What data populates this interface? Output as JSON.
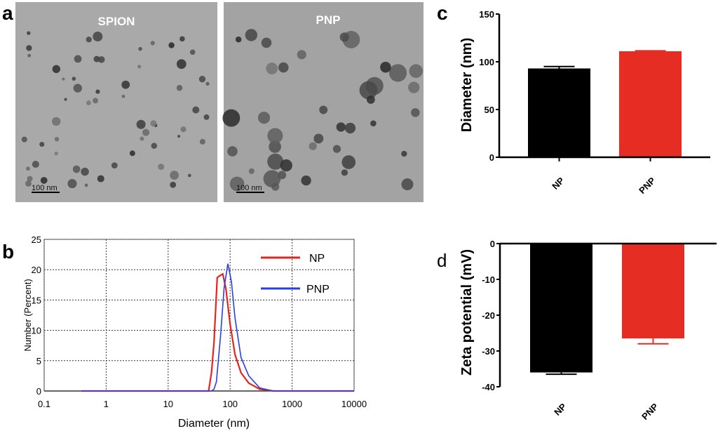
{
  "panel_labels": {
    "a": "a",
    "b": "b",
    "c": "c",
    "d": "d"
  },
  "tem_images": [
    {
      "title": "SPION",
      "scale_bar": "100 nm"
    },
    {
      "title": "PNP",
      "scale_bar": "100 nm"
    }
  ],
  "chart_data": [
    {
      "panel": "b",
      "type": "line",
      "xlabel": "Diameter (nm)",
      "ylabel": "Number (Percent)",
      "xscale": "log",
      "xlim": [
        0.1,
        10000
      ],
      "ylim": [
        0,
        25
      ],
      "xticks": [
        "0.1",
        "1",
        "10",
        "100",
        "1000",
        "10000"
      ],
      "yticks": [
        "0",
        "5",
        "10",
        "15",
        "20",
        "25"
      ],
      "grid": true,
      "legend_position": "top-right",
      "series": [
        {
          "name": "NP",
          "color": "#e8231c",
          "x": [
            0.4,
            45,
            50,
            55,
            62,
            68,
            76,
            85,
            100,
            120,
            150,
            200,
            300,
            500,
            10000
          ],
          "y": [
            0,
            0,
            3,
            8,
            18.7,
            19,
            19.3,
            17,
            11,
            6,
            3,
            1.3,
            0.3,
            0,
            0
          ]
        },
        {
          "name": "PNP",
          "color": "#2b3fe0",
          "x": [
            0.4,
            50,
            55,
            60,
            70,
            80,
            92,
            105,
            120,
            150,
            200,
            300,
            500,
            10000
          ],
          "y": [
            0,
            0,
            0.3,
            1.5,
            9,
            17,
            21,
            18,
            12,
            5.5,
            2.5,
            0.5,
            0,
            0
          ]
        }
      ]
    },
    {
      "panel": "c",
      "type": "bar",
      "ylabel": "Diameter (nm)",
      "categories": [
        "NP",
        "PNP"
      ],
      "values": [
        93,
        111
      ],
      "errors": [
        2,
        0.5
      ],
      "colors": [
        "#000000",
        "#e52d24"
      ],
      "ylim": [
        0,
        150
      ],
      "yticks": [
        "0",
        "50",
        "100",
        "150"
      ]
    },
    {
      "panel": "d",
      "type": "bar",
      "ylabel": "Zeta  potential (mV)",
      "categories": [
        "NP",
        "PNP"
      ],
      "values": [
        -36,
        -26.5
      ],
      "errors": [
        0.5,
        1.5
      ],
      "colors": [
        "#000000",
        "#e52d24"
      ],
      "ylim": [
        -40,
        0
      ],
      "yticks": [
        "0",
        "-10",
        "-20",
        "-30",
        "-40"
      ]
    }
  ]
}
